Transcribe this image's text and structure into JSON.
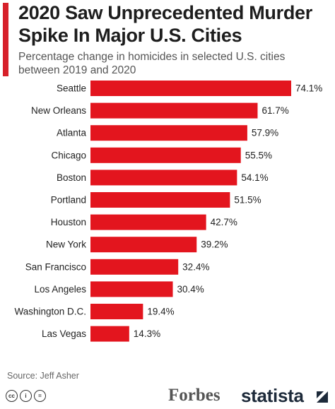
{
  "title": "2020 Saw Unprecedented Murder Spike In Major U.S. Cities",
  "subtitle": "Percentage change in homicides in selected U.S. cities between 2019 and 2020",
  "source": "Source: Jeff Asher",
  "brand_forbes": "Forbes",
  "brand_statista": "statista",
  "colors": {
    "accent": "#d7202a",
    "bar": "#e3151e"
  },
  "chart_data": {
    "type": "bar",
    "orientation": "horizontal",
    "categories": [
      "Seattle",
      "New Orleans",
      "Atlanta",
      "Chicago",
      "Boston",
      "Portland",
      "Houston",
      "New York",
      "San Francisco",
      "Los Angeles",
      "Washington D.C.",
      "Las Vegas"
    ],
    "values": [
      74.1,
      61.7,
      57.9,
      55.5,
      54.1,
      51.5,
      42.7,
      39.2,
      32.4,
      30.4,
      19.4,
      14.3
    ],
    "value_suffix": "%",
    "grid": false,
    "legend": "none"
  }
}
